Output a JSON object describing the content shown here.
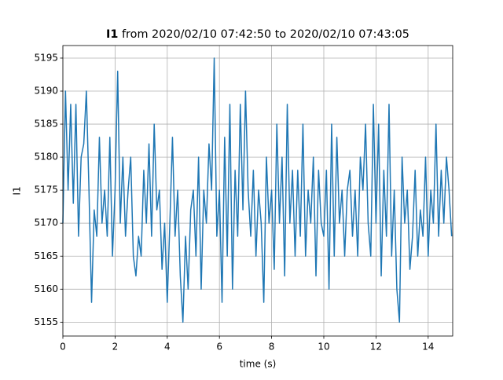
{
  "chart_data": {
    "type": "line",
    "title": [
      "I1",
      "from 2020/02/10 07:42:50 to 2020/02/10 07:43:05"
    ],
    "x_label": "time (s)",
    "y_label": "I1",
    "x": [
      0.0,
      0.1,
      0.2,
      0.3,
      0.4,
      0.5,
      0.6,
      0.7,
      0.8,
      0.9,
      1.0,
      1.1,
      1.2,
      1.3,
      1.4,
      1.5,
      1.6,
      1.7,
      1.8,
      1.9,
      2.0,
      2.1,
      2.2,
      2.3,
      2.4,
      2.5,
      2.6,
      2.7,
      2.8,
      2.9,
      3.0,
      3.1,
      3.2,
      3.3,
      3.4,
      3.5,
      3.6,
      3.7,
      3.8,
      3.9,
      4.0,
      4.1,
      4.2,
      4.3,
      4.4,
      4.5,
      4.6,
      4.7,
      4.8,
      4.9,
      5.0,
      5.1,
      5.2,
      5.3,
      5.4,
      5.5,
      5.6,
      5.7,
      5.8,
      5.9,
      6.0,
      6.1,
      6.2,
      6.3,
      6.4,
      6.5,
      6.6,
      6.7,
      6.8,
      6.9,
      7.0,
      7.1,
      7.2,
      7.3,
      7.4,
      7.5,
      7.6,
      7.7,
      7.8,
      7.9,
      8.0,
      8.1,
      8.2,
      8.3,
      8.4,
      8.5,
      8.6,
      8.7,
      8.8,
      8.9,
      9.0,
      9.1,
      9.2,
      9.3,
      9.4,
      9.5,
      9.6,
      9.7,
      9.8,
      9.9,
      10.0,
      10.1,
      10.2,
      10.3,
      10.4,
      10.5,
      10.6,
      10.7,
      10.8,
      10.9,
      11.0,
      11.1,
      11.2,
      11.3,
      11.4,
      11.5,
      11.6,
      11.7,
      11.8,
      11.9,
      12.0,
      12.1,
      12.2,
      12.3,
      12.4,
      12.5,
      12.6,
      12.7,
      12.8,
      12.9,
      13.0,
      13.1,
      13.2,
      13.3,
      13.4,
      13.5,
      13.6,
      13.7,
      13.8,
      13.9,
      14.0,
      14.1,
      14.2,
      14.3,
      14.4,
      14.5,
      14.6,
      14.7,
      14.8,
      14.9
    ],
    "values": [
      5170,
      5190,
      5175,
      5188,
      5173,
      5188,
      5168,
      5180,
      5182,
      5190,
      5175,
      5158,
      5172,
      5168,
      5183,
      5170,
      5175,
      5168,
      5183,
      5165,
      5175,
      5193,
      5170,
      5180,
      5168,
      5175,
      5180,
      5165,
      5162,
      5168,
      5165,
      5178,
      5170,
      5182,
      5168,
      5185,
      5172,
      5175,
      5163,
      5170,
      5158,
      5170,
      5183,
      5168,
      5175,
      5162,
      5155,
      5168,
      5160,
      5172,
      5175,
      5165,
      5180,
      5160,
      5175,
      5170,
      5182,
      5175,
      5195,
      5168,
      5175,
      5158,
      5183,
      5165,
      5188,
      5160,
      5178,
      5168,
      5188,
      5172,
      5190,
      5175,
      5168,
      5178,
      5165,
      5175,
      5170,
      5158,
      5180,
      5170,
      5175,
      5163,
      5185,
      5170,
      5180,
      5162,
      5188,
      5170,
      5178,
      5165,
      5178,
      5168,
      5185,
      5165,
      5175,
      5170,
      5180,
      5162,
      5178,
      5170,
      5168,
      5178,
      5160,
      5185,
      5165,
      5183,
      5170,
      5175,
      5165,
      5175,
      5178,
      5168,
      5175,
      5165,
      5180,
      5175,
      5185,
      5170,
      5165,
      5188,
      5170,
      5185,
      5162,
      5178,
      5168,
      5188,
      5165,
      5175,
      5160,
      5155,
      5180,
      5170,
      5175,
      5163,
      5168,
      5178,
      5165,
      5172,
      5168,
      5180,
      5165,
      5175,
      5170,
      5185,
      5168,
      5178,
      5170,
      5180,
      5175,
      5168
    ],
    "color": "#1f77b4",
    "xlim": [
      0,
      14.94
    ],
    "ylim": [
      5152.9,
      5196.9
    ],
    "xticks": [
      0,
      2,
      4,
      6,
      8,
      10,
      12,
      14
    ],
    "yticks": [
      5155,
      5160,
      5165,
      5170,
      5175,
      5180,
      5185,
      5190,
      5195
    ],
    "grid": true
  }
}
